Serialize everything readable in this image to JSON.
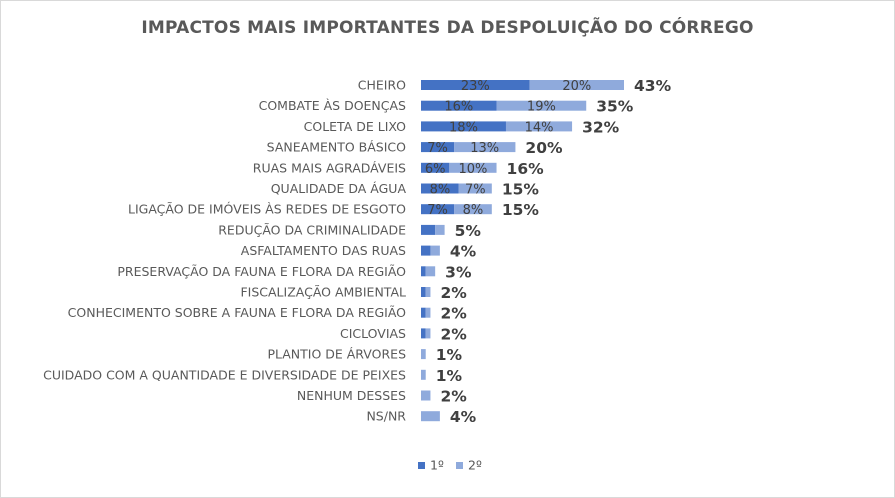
{
  "chart_data": {
    "type": "bar",
    "orientation": "horizontal",
    "stacked": true,
    "title": "IMPACTOS MAIS IMPORTANTES DA DESPOLUIÇÃO DO CÓRREGO",
    "categories": [
      "CHEIRO",
      "COMBATE ÀS DOENÇAS",
      "COLETA DE LIXO",
      "SANEAMENTO BÁSICO",
      "RUAS MAIS AGRADÁVEIS",
      "QUALIDADE DA ÁGUA",
      "LIGAÇÃO DE IMÓVEIS ÀS REDES DE ESGOTO",
      "REDUÇÃO DA CRIMINALIDADE",
      "ASFALTAMENTO DAS RUAS",
      "PRESERVAÇÃO DA FAUNA E FLORA DA REGIÃO",
      "FISCALIZAÇÃO AMBIENTAL",
      "CONHECIMENTO SOBRE A FAUNA E FLORA DA REGIÃO",
      "CICLOVIAS",
      "PLANTIO DE ÁRVORES",
      "CUIDADO COM A QUANTIDADE E DIVERSIDADE DE PEIXES",
      "NENHUM DESSES",
      "NS/NR"
    ],
    "series": [
      {
        "name": "1º",
        "color": "#4472c4",
        "values": [
          23,
          16,
          18,
          7,
          6,
          8,
          7,
          3,
          2,
          1,
          1,
          1,
          1,
          0,
          0,
          0,
          0
        ],
        "labels": [
          "23%",
          "16%",
          "18%",
          "7%",
          "6%",
          "8%",
          "7%",
          "",
          "",
          "",
          "",
          "",
          "",
          "",
          "",
          "",
          ""
        ]
      },
      {
        "name": "2º",
        "color": "#8faadc",
        "values": [
          20,
          19,
          14,
          13,
          10,
          7,
          8,
          2,
          2,
          2,
          1,
          1,
          1,
          1,
          1,
          2,
          4
        ],
        "labels": [
          "20%",
          "19%",
          "14%",
          "13%",
          "10%",
          "7%",
          "8%",
          "",
          "",
          "",
          "",
          "",
          "",
          "",
          "",
          "",
          ""
        ]
      }
    ],
    "totals": [
      "43%",
      "35%",
      "32%",
      "20%",
      "16%",
      "15%",
      "15%",
      "5%",
      "4%",
      "3%",
      "2%",
      "2%",
      "2%",
      "1%",
      "1%",
      "2%",
      "4%"
    ],
    "total_values": [
      43,
      35,
      32,
      20,
      16,
      15,
      15,
      5,
      4,
      3,
      2,
      2,
      2,
      1,
      1,
      2,
      4
    ],
    "xlim": [
      0,
      43
    ],
    "grid": false,
    "legend_position": "bottom"
  }
}
